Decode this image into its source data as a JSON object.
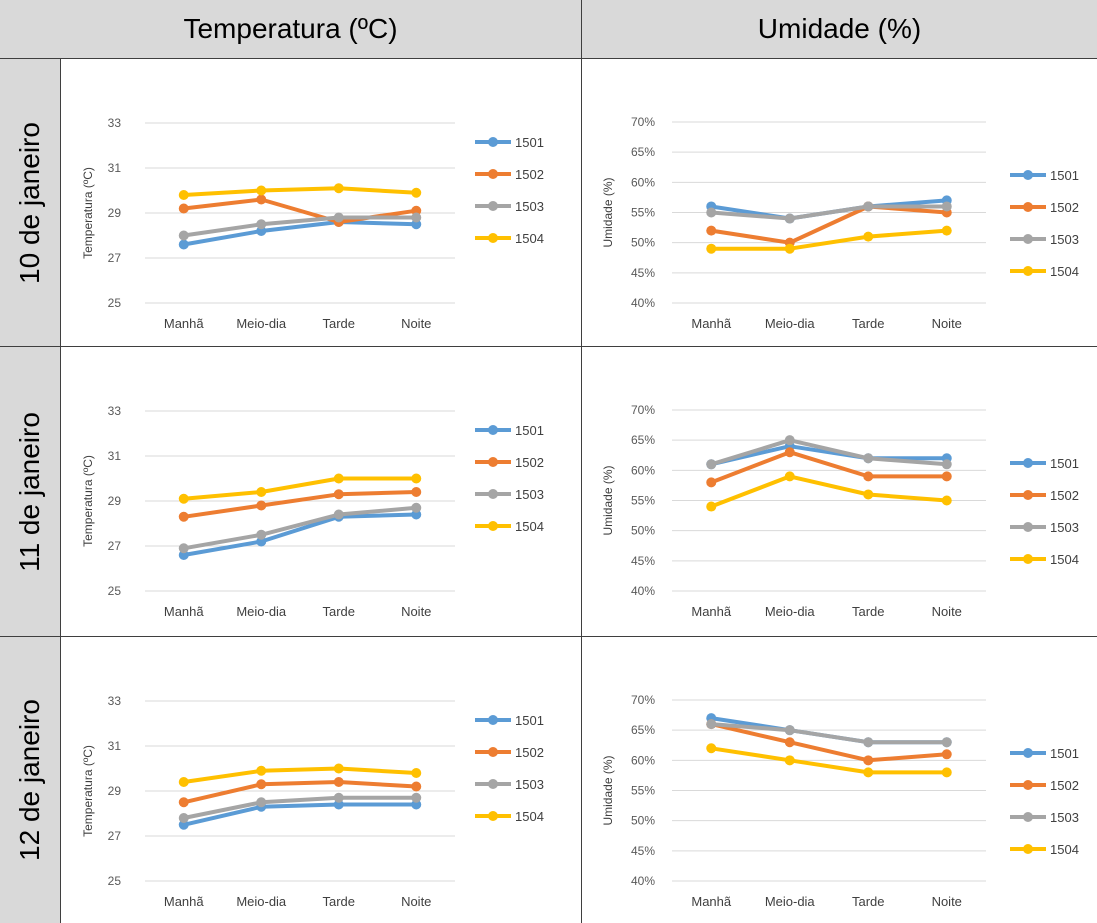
{
  "columns": [
    "Temperatura (ºC)",
    "Umidade (%)"
  ],
  "rows": [
    "10 de janeiro",
    "11 de janeiro",
    "12 de janeiro"
  ],
  "colors": {
    "1501": "#5b9bd5",
    "1502": "#ed7d31",
    "1503": "#a5a5a5",
    "1504": "#ffc000"
  },
  "chart_data": [
    {
      "type": "line",
      "title": "",
      "day": "10 de janeiro",
      "categories": [
        "Manhã",
        "Meio-dia",
        "Tarde",
        "Noite"
      ],
      "ylabel": "Temperatura (ºC)",
      "ylim": [
        25,
        33
      ],
      "yticks": [
        "25",
        "27",
        "29",
        "31",
        "33"
      ],
      "grid": true,
      "legend": "right",
      "series": [
        {
          "name": "1501",
          "values": [
            27.6,
            28.2,
            28.6,
            28.5
          ]
        },
        {
          "name": "1502",
          "values": [
            29.2,
            29.6,
            28.6,
            29.1
          ]
        },
        {
          "name": "1503",
          "values": [
            28.0,
            28.5,
            28.8,
            28.8
          ]
        },
        {
          "name": "1504",
          "values": [
            29.8,
            30.0,
            30.1,
            29.9
          ]
        }
      ]
    },
    {
      "type": "line",
      "title": "",
      "day": "10 de janeiro",
      "categories": [
        "Manhã",
        "Meio-dia",
        "Tarde",
        "Noite"
      ],
      "ylabel": "Umidade (%)",
      "ylim": [
        40,
        70
      ],
      "yticks": [
        "40%",
        "45%",
        "50%",
        "55%",
        "60%",
        "65%",
        "70%"
      ],
      "grid": true,
      "legend": "right",
      "series": [
        {
          "name": "1501",
          "values": [
            56,
            54,
            56,
            57
          ]
        },
        {
          "name": "1502",
          "values": [
            52,
            50,
            56,
            55
          ]
        },
        {
          "name": "1503",
          "values": [
            55,
            54,
            56,
            56
          ]
        },
        {
          "name": "1504",
          "values": [
            49,
            49,
            51,
            52
          ]
        }
      ]
    },
    {
      "type": "line",
      "title": "",
      "day": "11 de janeiro",
      "categories": [
        "Manhã",
        "Meio-dia",
        "Tarde",
        "Noite"
      ],
      "ylabel": "Temperatura (ºC)",
      "ylim": [
        25,
        33
      ],
      "yticks": [
        "25",
        "27",
        "29",
        "31",
        "33"
      ],
      "grid": true,
      "legend": "right",
      "series": [
        {
          "name": "1501",
          "values": [
            26.6,
            27.2,
            28.3,
            28.4
          ]
        },
        {
          "name": "1502",
          "values": [
            28.3,
            28.8,
            29.3,
            29.4
          ]
        },
        {
          "name": "1503",
          "values": [
            26.9,
            27.5,
            28.4,
            28.7
          ]
        },
        {
          "name": "1504",
          "values": [
            29.1,
            29.4,
            30.0,
            30.0
          ]
        }
      ]
    },
    {
      "type": "line",
      "title": "",
      "day": "11 de janeiro",
      "categories": [
        "Manhã",
        "Meio-dia",
        "Tarde",
        "Noite"
      ],
      "ylabel": "Umidade (%)",
      "ylim": [
        40,
        70
      ],
      "yticks": [
        "40%",
        "45%",
        "50%",
        "55%",
        "60%",
        "65%",
        "70%"
      ],
      "grid": true,
      "legend": "right",
      "series": [
        {
          "name": "1501",
          "values": [
            61,
            64,
            62,
            62
          ]
        },
        {
          "name": "1502",
          "values": [
            58,
            63,
            59,
            59
          ]
        },
        {
          "name": "1503",
          "values": [
            61,
            65,
            62,
            61
          ]
        },
        {
          "name": "1504",
          "values": [
            54,
            59,
            56,
            55
          ]
        }
      ]
    },
    {
      "type": "line",
      "title": "",
      "day": "12 de janeiro",
      "categories": [
        "Manhã",
        "Meio-dia",
        "Tarde",
        "Noite"
      ],
      "ylabel": "Temperatura (ºC)",
      "ylim": [
        25,
        33
      ],
      "yticks": [
        "25",
        "27",
        "29",
        "31",
        "33"
      ],
      "grid": true,
      "legend": "right",
      "series": [
        {
          "name": "1501",
          "values": [
            27.5,
            28.3,
            28.4,
            28.4
          ]
        },
        {
          "name": "1502",
          "values": [
            28.5,
            29.3,
            29.4,
            29.2
          ]
        },
        {
          "name": "1503",
          "values": [
            27.8,
            28.5,
            28.7,
            28.7
          ]
        },
        {
          "name": "1504",
          "values": [
            29.4,
            29.9,
            30.0,
            29.8
          ]
        }
      ]
    },
    {
      "type": "line",
      "title": "",
      "day": "12 de janeiro",
      "categories": [
        "Manhã",
        "Meio-dia",
        "Tarde",
        "Noite"
      ],
      "ylabel": "Umidade (%)",
      "ylim": [
        40,
        70
      ],
      "yticks": [
        "40%",
        "45%",
        "50%",
        "55%",
        "60%",
        "65%",
        "70%"
      ],
      "grid": true,
      "legend": "right",
      "series": [
        {
          "name": "1501",
          "values": [
            67,
            65,
            63,
            63
          ]
        },
        {
          "name": "1502",
          "values": [
            66,
            63,
            60,
            61
          ]
        },
        {
          "name": "1503",
          "values": [
            66,
            65,
            63,
            63
          ]
        },
        {
          "name": "1504",
          "values": [
            62,
            60,
            58,
            58
          ]
        }
      ]
    }
  ]
}
